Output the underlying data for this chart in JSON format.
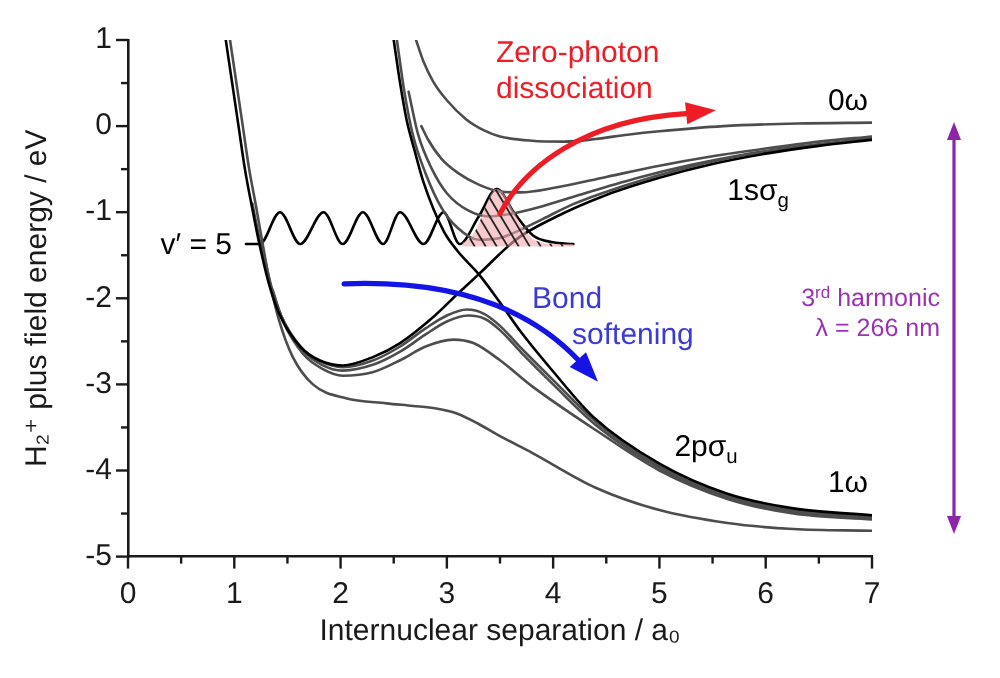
{
  "chart_data": {
    "type": "line",
    "xlabel": "Internuclear separation / a₀",
    "ylabel": "H₂⁺ plus field energy / eV",
    "xlim": [
      0,
      7
    ],
    "xticks": [
      0,
      {
        "value": 0.5,
        "label": null
      },
      1,
      {
        "value": 1.5,
        "label": null
      },
      2,
      {
        "value": 2.5,
        "label": null
      },
      3,
      {
        "value": 3.5,
        "label": null
      },
      4,
      {
        "value": 4.5,
        "label": null
      },
      5,
      {
        "value": 5.5,
        "label": null
      },
      6,
      {
        "value": 6.5,
        "label": null
      },
      7
    ],
    "ylim": [
      -5,
      1
    ],
    "yticks": [
      -5,
      {
        "value": -4.5,
        "label": null
      },
      -4,
      {
        "value": -3.5,
        "label": null
      },
      -3,
      {
        "value": -2.5,
        "label": null
      },
      -2,
      {
        "value": -1.5,
        "label": null
      },
      -1,
      {
        "value": -0.5,
        "label": null
      },
      0,
      {
        "value": 0.5,
        "label": null
      },
      1
    ],
    "series": [
      {
        "color": "#000000",
        "x": [
          0.92,
          0.98,
          1.04,
          1.1,
          1.16,
          1.24,
          1.33,
          1.43,
          1.62,
          1.8,
          2.02,
          2.31,
          2.56,
          2.87,
          3.1,
          3.3,
          3.66,
          4.0,
          4.5,
          5.0,
          5.5,
          6.0,
          6.5,
          7.0
        ],
        "values": [
          1.0,
          0.5,
          0.0,
          -0.5,
          -0.9,
          -1.39,
          -1.85,
          -2.2,
          -2.56,
          -2.72,
          -2.78,
          -2.68,
          -2.52,
          -2.22,
          -1.95,
          -1.72,
          -1.31,
          -1.07,
          -0.8,
          -0.6,
          -0.44,
          -0.32,
          -0.23,
          -0.16
        ]
      },
      {
        "color": "#000000",
        "x": [
          2.5,
          2.56,
          2.62,
          2.7,
          2.78,
          2.97,
          3.1,
          3.3,
          3.5,
          3.69,
          4.0,
          4.38,
          5.0,
          5.64,
          6.26,
          7.0
        ],
        "values": [
          1.0,
          0.5,
          0.08,
          -0.3,
          -0.65,
          -1.22,
          -1.45,
          -1.72,
          -2.05,
          -2.38,
          -2.85,
          -3.38,
          -3.92,
          -4.27,
          -4.44,
          -4.52
        ]
      },
      {
        "color": "#4d4d4d",
        "x": [
          1.17,
          1.25,
          1.34,
          1.44,
          1.63,
          1.81,
          2.02,
          2.31,
          2.56,
          2.8,
          3.0,
          3.19,
          3.35,
          3.5,
          3.7,
          4.0,
          4.4,
          5.0,
          5.64,
          6.26,
          7.0
        ],
        "values": [
          -0.9,
          -1.39,
          -1.85,
          -2.2,
          -2.57,
          -2.73,
          -2.8,
          -2.72,
          -2.56,
          -2.35,
          -2.2,
          -2.13,
          -2.18,
          -2.32,
          -2.58,
          -2.95,
          -3.43,
          -3.95,
          -4.29,
          -4.46,
          -4.54
        ]
      },
      {
        "color": "#4d4d4d",
        "x": [
          1.26,
          1.35,
          1.45,
          1.64,
          1.82,
          2.02,
          2.31,
          2.56,
          2.8,
          3.0,
          3.2,
          3.36,
          3.5,
          3.7,
          4.0,
          4.4,
          5.0,
          5.64,
          6.26,
          7.0
        ],
        "values": [
          -1.39,
          -1.87,
          -2.23,
          -2.6,
          -2.77,
          -2.84,
          -2.77,
          -2.62,
          -2.42,
          -2.27,
          -2.2,
          -2.24,
          -2.37,
          -2.63,
          -3.0,
          -3.47,
          -3.97,
          -4.31,
          -4.48,
          -4.55
        ]
      },
      {
        "color": "#4d4d4d",
        "x": [
          1.36,
          1.46,
          1.65,
          1.83,
          2.02,
          2.3,
          2.56,
          2.8,
          3.06,
          3.25,
          3.5,
          3.8,
          4.4,
          5.0,
          5.64,
          6.26,
          7.0
        ],
        "values": [
          -1.9,
          -2.27,
          -2.65,
          -2.82,
          -2.9,
          -2.86,
          -2.72,
          -2.56,
          -2.48,
          -2.52,
          -2.72,
          -3.02,
          -3.53,
          -4.0,
          -4.33,
          -4.5,
          -4.57
        ]
      },
      {
        "color": "#4d4d4d",
        "x": [
          0.96,
          1.02,
          1.08,
          1.14,
          1.2,
          1.27,
          1.33,
          1.42,
          1.55,
          1.74,
          2.05,
          2.43,
          2.68,
          2.9,
          3.1,
          3.3,
          3.5,
          3.81,
          4.4,
          5.0,
          5.64,
          6.26,
          7.0
        ],
        "values": [
          1.0,
          0.5,
          0.0,
          -0.5,
          -0.9,
          -1.39,
          -1.79,
          -2.25,
          -2.68,
          -3.0,
          -3.16,
          -3.22,
          -3.25,
          -3.28,
          -3.34,
          -3.46,
          -3.6,
          -3.8,
          -4.2,
          -4.46,
          -4.61,
          -4.68,
          -4.7
        ]
      },
      {
        "color": "#4d4d4d",
        "x": [
          2.53,
          2.6,
          2.68,
          2.8,
          2.95,
          3.1,
          3.3,
          3.5,
          3.7,
          3.9,
          4.2,
          4.7,
          5.2,
          5.7,
          6.2,
          7.0
        ],
        "values": [
          1.0,
          0.4,
          -0.1,
          -0.55,
          -0.95,
          -1.18,
          -1.32,
          -1.3,
          -1.2,
          -1.08,
          -0.9,
          -0.68,
          -0.5,
          -0.36,
          -0.26,
          -0.15
        ]
      },
      {
        "color": "#4d4d4d",
        "x": [
          2.64,
          2.73,
          2.86,
          3.0,
          3.2,
          3.4,
          3.6,
          3.9,
          4.3,
          4.8,
          5.3,
          5.8,
          6.3,
          7.0
        ],
        "values": [
          0.4,
          -0.1,
          -0.5,
          -0.78,
          -0.98,
          -1.05,
          -1.02,
          -0.93,
          -0.78,
          -0.6,
          -0.45,
          -0.33,
          -0.24,
          -0.14
        ]
      },
      {
        "color": "#4d4d4d",
        "x": [
          2.76,
          2.82,
          2.95,
          3.1,
          3.3,
          3.5,
          3.7,
          4.0,
          4.5,
          5.0,
          5.5,
          6.0,
          6.5,
          7.0
        ],
        "values": [
          0.0,
          -0.15,
          -0.38,
          -0.54,
          -0.68,
          -0.76,
          -0.77,
          -0.72,
          -0.59,
          -0.46,
          -0.35,
          -0.26,
          -0.18,
          -0.12
        ]
      },
      {
        "color": "#4d4d4d",
        "x": [
          2.71,
          2.78,
          2.87,
          3.0,
          3.18,
          3.35,
          3.5,
          3.8,
          4.1,
          4.4,
          4.7,
          5.0,
          5.6,
          6.3,
          7.0
        ],
        "values": [
          1.0,
          0.75,
          0.52,
          0.3,
          0.08,
          -0.05,
          -0.12,
          -0.17,
          -0.18,
          -0.15,
          -0.1,
          -0.06,
          0.0,
          0.03,
          0.04
        ]
      },
      {
        "name": "v′ = 5",
        "color": "#000000",
        "x": [
          1.11,
          1.24,
          1.43,
          1.62,
          1.84,
          2.02,
          2.21,
          2.4,
          2.56,
          2.78,
          2.97,
          3.12,
          3.3,
          3.47,
          3.64,
          3.81,
          4.0,
          4.19
        ],
        "values": [
          -1.37,
          -1.37,
          -1.0,
          -1.37,
          -1.0,
          -1.37,
          -1.0,
          -1.37,
          -1.0,
          -1.37,
          -1.0,
          -1.37,
          -1.05,
          -0.73,
          -1.02,
          -1.27,
          -1.35,
          -1.37
        ]
      }
    ],
    "annotations": [
      {
        "text": "Zero-photon dissociation",
        "x": 3.5,
        "y": -1.04
      },
      {
        "text": "Bond softening",
        "x": 3.35,
        "y": -2.18
      },
      "0ω",
      "1sσ$_{g}$",
      "2pσ$_{u}$",
      "1ω",
      "3$^{rd}$ harmonic λ = 266 nm"
    ]
  }
}
